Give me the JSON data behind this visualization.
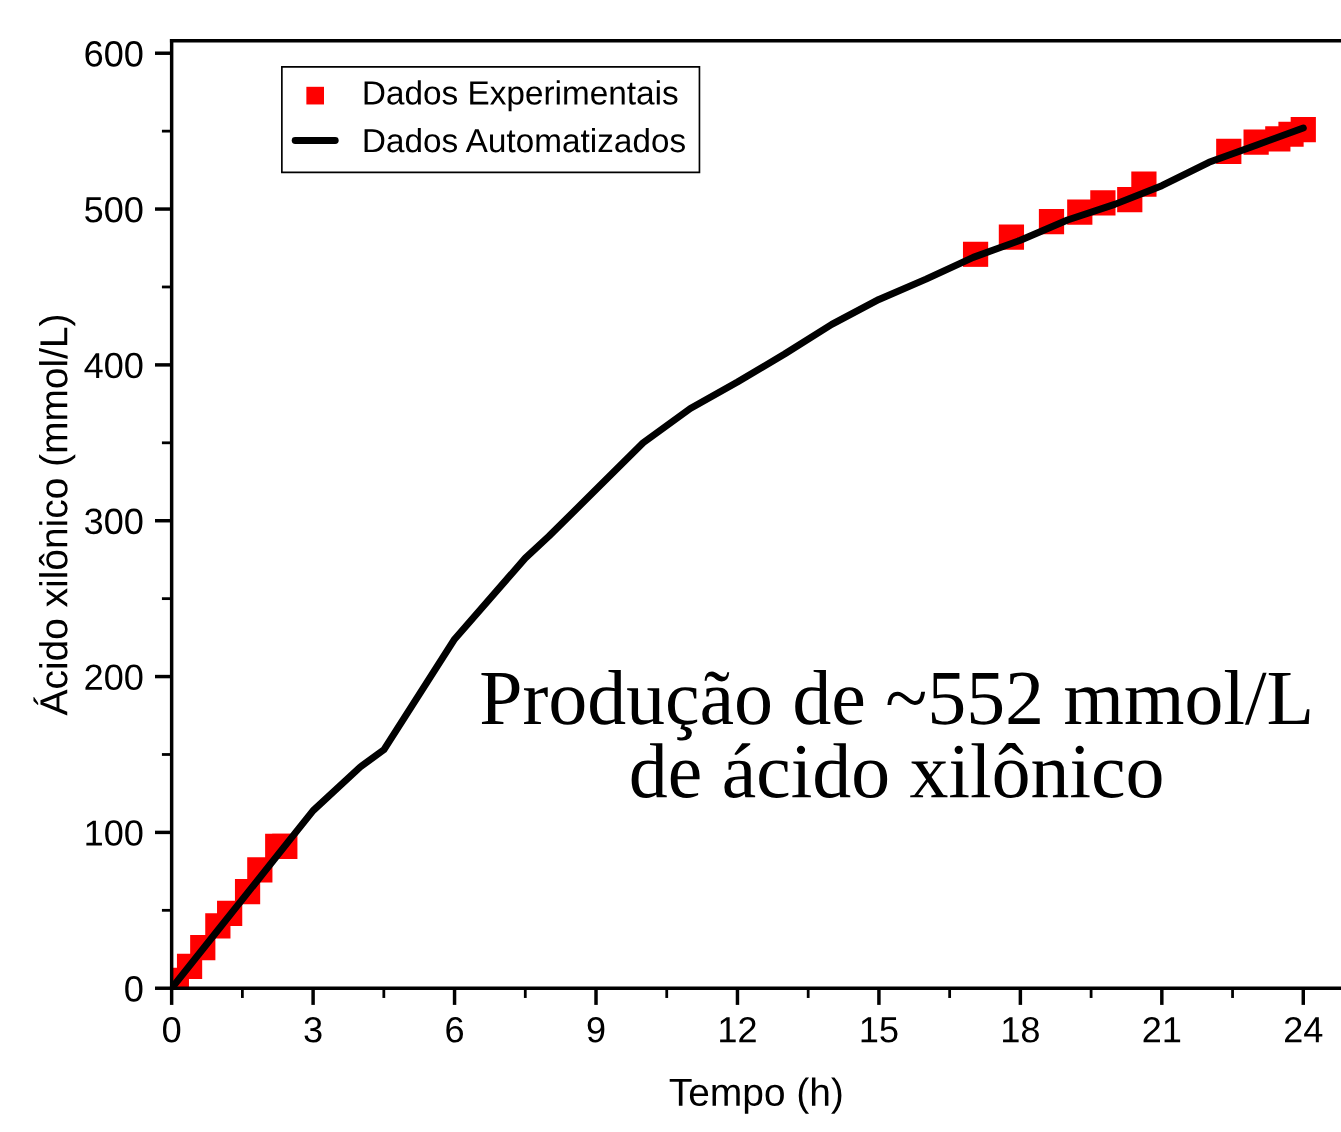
{
  "chart_data": {
    "type": "scatter",
    "xlabel": "Tempo (h)",
    "ylabel": "Ácido xilônico (mmol/L)",
    "xlim": [
      0,
      24.8
    ],
    "xticks": [
      0,
      3,
      6,
      9,
      12,
      15,
      18,
      21,
      24
    ],
    "ylim": [
      0,
      608
    ],
    "yticks": [
      0,
      100,
      200,
      300,
      400,
      500,
      600
    ],
    "grid": false,
    "legend": "top left",
    "annotations": [
      "Produção de ~552 mmol/L de ácido xilônico"
    ],
    "series": [
      {
        "name": "Dados Experimentais",
        "marker": "square",
        "color": "#ff0000",
        "x": [
          0.1,
          0.38,
          0.66,
          0.98,
          1.23,
          1.61,
          1.87,
          2.25,
          2.4,
          17.05,
          17.81,
          18.66,
          19.26,
          19.75,
          20.32,
          20.62,
          22.42,
          23.0,
          23.46,
          23.74,
          24.0
        ],
        "values": [
          5,
          14,
          26,
          40,
          48,
          62,
          76,
          91,
          91,
          471,
          482,
          492,
          498,
          504,
          506,
          516,
          537,
          543,
          545,
          548,
          551
        ]
      },
      {
        "name": "Dados Automatizados",
        "type": "line",
        "color": "#000000",
        "x": [
          0,
          1,
          1.5,
          2.5,
          3,
          4,
          4.5,
          6,
          7.5,
          8,
          9,
          10,
          11,
          12,
          13,
          14,
          15,
          16,
          17,
          18,
          19,
          20,
          21,
          22,
          23,
          24
        ],
        "values": [
          0,
          38,
          57,
          95,
          114,
          142,
          153,
          224,
          276,
          290,
          320,
          350,
          372,
          389,
          407,
          426,
          442,
          455,
          469,
          480,
          493,
          503,
          515,
          530,
          541,
          552
        ]
      }
    ]
  }
}
